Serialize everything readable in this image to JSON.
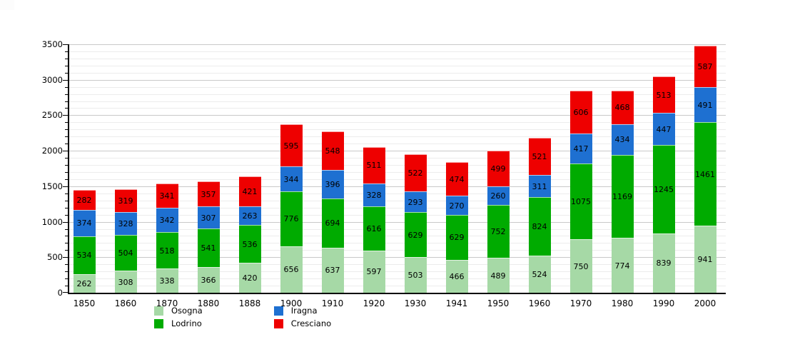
{
  "chart_data": {
    "type": "bar",
    "stacked": true,
    "title": "",
    "xlabel": "",
    "ylabel": "",
    "categories": [
      "1850",
      "1860",
      "1870",
      "1880",
      "1888",
      "1900",
      "1910",
      "1920",
      "1930",
      "1941",
      "1950",
      "1960",
      "1970",
      "1980",
      "1990",
      "2000"
    ],
    "series": [
      {
        "name": "Osogna",
        "color": "#a6d9a6",
        "values": [
          262,
          308,
          338,
          366,
          420,
          656,
          637,
          597,
          503,
          466,
          489,
          524,
          750,
          774,
          839,
          941
        ]
      },
      {
        "name": "Lodrino",
        "color": "#00ab00",
        "values": [
          534,
          504,
          518,
          541,
          536,
          776,
          694,
          616,
          629,
          629,
          752,
          824,
          1075,
          1169,
          1245,
          1461
        ]
      },
      {
        "name": "Iragna",
        "color": "#1e70d1",
        "values": [
          374,
          328,
          342,
          307,
          263,
          344,
          396,
          328,
          293,
          270,
          260,
          311,
          417,
          434,
          447,
          491
        ]
      },
      {
        "name": "Cresciano",
        "color": "#ee0000",
        "values": [
          282,
          319,
          341,
          357,
          421,
          595,
          548,
          511,
          522,
          474,
          499,
          521,
          606,
          468,
          513,
          587
        ]
      }
    ],
    "ylim": [
      0,
      3500
    ],
    "y_major_step": 500,
    "y_minor_step": 100,
    "y_tick_labels": [
      "0",
      "500",
      "1000",
      "1500",
      "2000",
      "2500",
      "3000",
      "3500"
    ],
    "grid": "on",
    "value_labels": "inside-center",
    "legend_position": "bottom",
    "legend_columns": [
      [
        "Osogna",
        "Lodrino"
      ],
      [
        "Iragna",
        "Cresciano"
      ]
    ],
    "colors": {
      "Osogna": "#a6d9a6",
      "Lodrino": "#00ab00",
      "Iragna": "#1e70d1",
      "Cresciano": "#ee0000",
      "axis": "#000000",
      "grid_major": "#c9c9c9",
      "grid_minor": "#ececec",
      "background": "#ffffff"
    }
  }
}
